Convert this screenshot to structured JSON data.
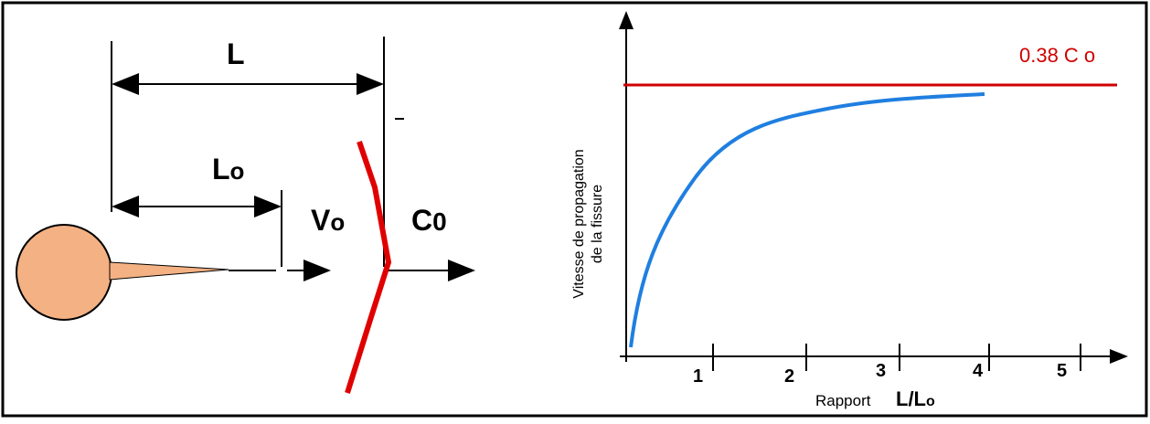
{
  "left": {
    "L": "L",
    "Lo": {
      "main": "L",
      "sub": "o"
    },
    "Vo": {
      "main": "V",
      "sub": "o"
    },
    "C0": {
      "main": "C",
      "sub": "0"
    }
  },
  "right": {
    "limit": "0.38 C o",
    "y_label": [
      "Vitesse de propagation",
      "de la fissure"
    ],
    "x_label": "Rapport",
    "x_ratio": "L/L",
    "x_ratio_sub": "o",
    "ticks": [
      "1",
      "2",
      "3",
      "4",
      "5"
    ]
  }
}
